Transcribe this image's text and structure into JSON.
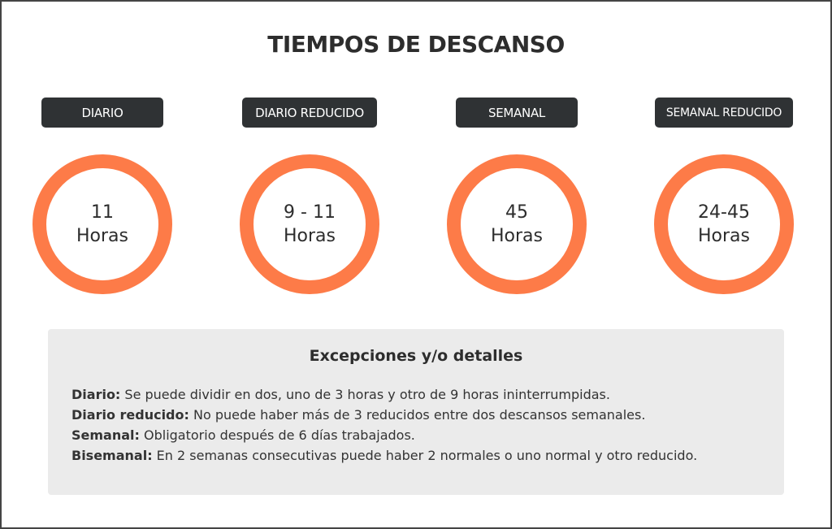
{
  "title": "TIEMPOS DE DESCANSO",
  "accent_color": "#fd7b48",
  "badge_color": "#2f3234",
  "columns": [
    {
      "label": "DIARIO",
      "value": "11",
      "unit": "Horas"
    },
    {
      "label": "DIARIO REDUCIDO",
      "value": "9 - 11",
      "unit": "Horas"
    },
    {
      "label": "SEMANAL",
      "value": "45",
      "unit": "Horas"
    },
    {
      "label": "SEMANAL REDUCIDO",
      "value": "24-45",
      "unit": "Horas"
    }
  ],
  "details": {
    "heading": "Excepciones y/o detalles",
    "items": [
      {
        "term": "Diario:",
        "text": " Se puede dividir en dos, uno de 3 horas y otro de 9 horas ininterrumpidas."
      },
      {
        "term": "Diario reducido:",
        "text": " No puede haber más de 3 reducidos entre dos descansos semanales."
      },
      {
        "term": "Semanal:",
        "text": " Obligatorio después de 6 días trabajados."
      },
      {
        "term": "Bisemanal:",
        "text": " En 2 semanas consecutivas puede haber 2 normales o uno normal y otro reducido."
      }
    ]
  }
}
